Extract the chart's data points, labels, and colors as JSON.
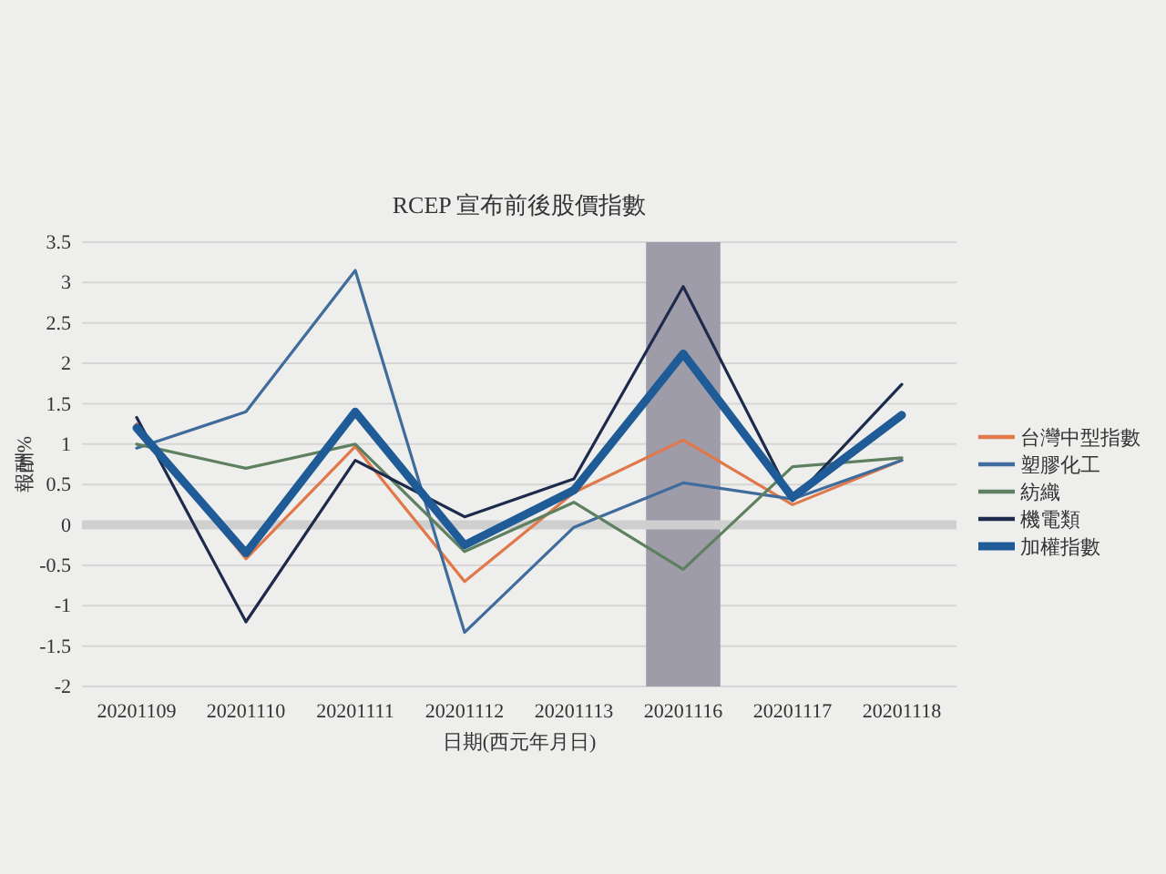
{
  "chart_data": {
    "type": "line",
    "title": "RCEP 宣布前後股價指數",
    "xlabel": "日期(西元年月日)",
    "ylabel": "報酬%",
    "categories": [
      "20201109",
      "20201110",
      "20201111",
      "20201112",
      "20201113",
      "20201116",
      "20201117",
      "20201118"
    ],
    "series": [
      {
        "name": "台灣中型指數",
        "color": "#e0784a",
        "values": [
          1.25,
          -0.42,
          0.97,
          -0.7,
          0.4,
          1.05,
          0.25,
          0.8
        ]
      },
      {
        "name": "塑膠化工",
        "color": "#3f6c9c",
        "values": [
          0.95,
          1.4,
          3.15,
          -1.33,
          -0.03,
          0.52,
          0.32,
          0.8
        ]
      },
      {
        "name": "紡織",
        "color": "#5e8060",
        "values": [
          1.0,
          0.7,
          1.0,
          -0.33,
          0.28,
          -0.55,
          0.72,
          0.83
        ]
      },
      {
        "name": "機電類",
        "color": "#1c2b4c",
        "values": [
          1.33,
          -1.2,
          0.8,
          0.1,
          0.57,
          2.95,
          0.3,
          1.74
        ]
      },
      {
        "name": "加權指數",
        "color": "#1f5b97",
        "values": [
          1.2,
          -0.35,
          1.4,
          -0.25,
          0.43,
          2.12,
          0.34,
          1.36
        ]
      }
    ],
    "ylim": [
      -2,
      3.5
    ],
    "yticks": [
      -2,
      -1.5,
      -1,
      -0.5,
      0,
      0.5,
      1,
      1.5,
      2,
      2.5,
      3,
      3.5
    ],
    "grid": "y",
    "legend": "right",
    "marker": "none",
    "line_style": "solid",
    "bands": [
      {
        "axis": "x",
        "from": "20201116",
        "to": "20201116",
        "color": "#9e9ca9"
      }
    ],
    "ref_lines": [
      {
        "axis": "y",
        "value": 0,
        "color": "#cfcfcf"
      }
    ]
  }
}
